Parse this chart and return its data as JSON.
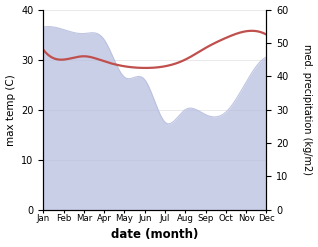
{
  "months": [
    "Jan",
    "Feb",
    "Mar",
    "Apr",
    "May",
    "Jun",
    "Jul",
    "Aug",
    "Sep",
    "Oct",
    "Nov",
    "Dec"
  ],
  "max_temp": [
    36.5,
    36.0,
    35.2,
    34.0,
    26.5,
    26.0,
    17.5,
    20.0,
    19.0,
    19.5,
    25.5,
    30.5
  ],
  "precipitation": [
    48.0,
    45.0,
    46.0,
    44.5,
    43.0,
    42.5,
    43.0,
    45.0,
    48.5,
    51.5,
    53.5,
    52.5
  ],
  "temp_fill_color": "#b8bfdf",
  "precip_color": "#c0504d",
  "ylabel_left": "max temp (C)",
  "ylabel_right": "med. precipitation (kg/m2)",
  "xlabel": "date (month)",
  "ylim_left": [
    0,
    40
  ],
  "ylim_right": [
    0,
    60
  ],
  "background_color": "#ffffff",
  "fig_width": 3.18,
  "fig_height": 2.47,
  "dpi": 100
}
